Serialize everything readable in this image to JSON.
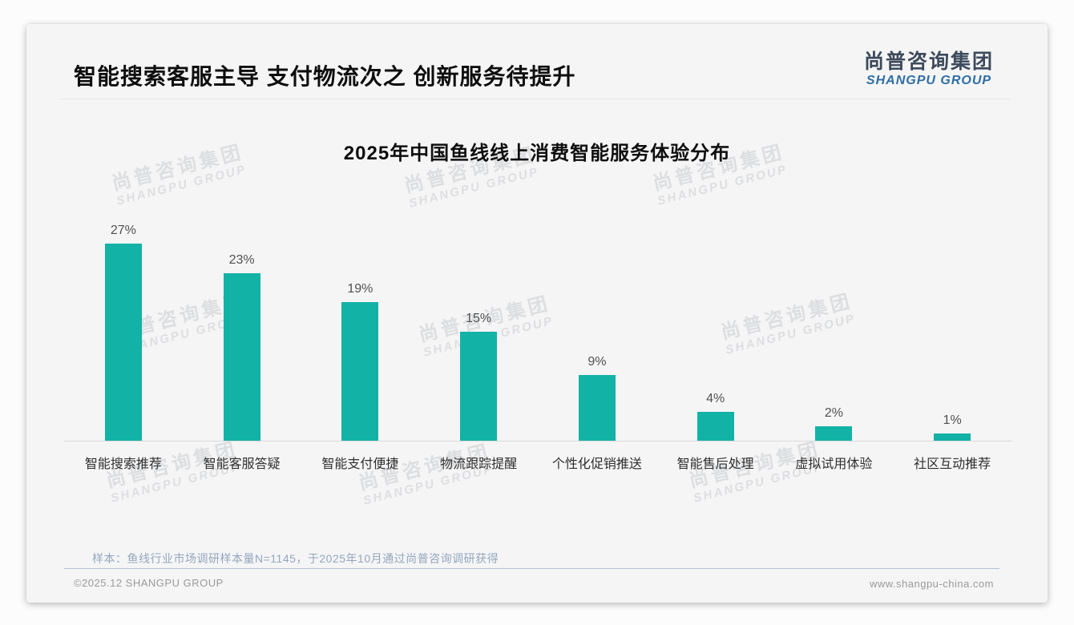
{
  "header": {
    "title": "智能搜索客服主导 支付物流次之 创新服务待提升"
  },
  "logo": {
    "name_cn": "尚普咨询集团",
    "name_en": "SHANGPU GROUP"
  },
  "watermark": {
    "line1": "尚普咨询集团",
    "line2": "SHANGPU GROUP"
  },
  "note": "样本：鱼线行业市场调研样本量N=1145，于2025年10月通过尚普咨询调研获得",
  "footer": {
    "copyright": "©2025.12 SHANGPU GROUP",
    "website": "www.shangpu-china.com"
  },
  "colors": {
    "bar": "#13b2a7",
    "logo_blue": "#2e6da4",
    "note_blue": "#94a6bd",
    "axis_line": "#d9d9da"
  },
  "chart_data": {
    "type": "bar",
    "title": "2025年中国鱼线线上消费智能服务体验分布",
    "categories": [
      "智能搜索推荐",
      "智能客服答疑",
      "智能支付便捷",
      "物流跟踪提醒",
      "个性化促销推送",
      "智能售后处理",
      "虚拟试用体验",
      "社区互动推荐"
    ],
    "values": [
      27,
      23,
      19,
      15,
      9,
      4,
      2,
      1
    ],
    "value_labels": [
      "27%",
      "23%",
      "19%",
      "15%",
      "9%",
      "4%",
      "2%",
      "1%"
    ],
    "unit": "%",
    "xlabel": "",
    "ylabel": "",
    "ylim": [
      0,
      28
    ],
    "grid": false,
    "legend_position": "none",
    "bar_color": "#13b2a7"
  }
}
